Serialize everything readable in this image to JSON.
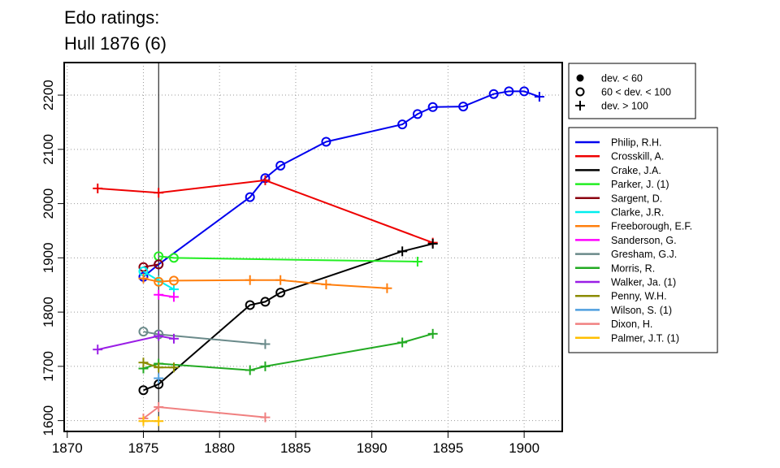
{
  "title_lines": [
    "Edo ratings:",
    "Hull 1876 (6)"
  ],
  "marker_legend": [
    {
      "symbol": "filled-circle",
      "label": "dev. < 60"
    },
    {
      "symbol": "open-circle",
      "label": "60 < dev. < 100"
    },
    {
      "symbol": "plus",
      "label": "dev. > 100"
    }
  ],
  "chart_data": {
    "type": "line",
    "title": "Edo ratings: Hull 1876 (6)",
    "xlabel": "",
    "ylabel": "",
    "xlim": [
      1869.8,
      1902.5
    ],
    "ylim": [
      1580,
      2260
    ],
    "xticks": [
      1870,
      1875,
      1880,
      1885,
      1890,
      1895,
      1900
    ],
    "yticks": [
      1600,
      1700,
      1800,
      1900,
      2000,
      2100,
      2200
    ],
    "reference_line_x": 1876,
    "grid": "dotted",
    "legend_position": "right",
    "series": [
      {
        "name": "Philip, R.H.",
        "color": "#0000ee",
        "points": [
          [
            1875,
            1865,
            "o"
          ],
          [
            1876,
            1888,
            "o"
          ],
          [
            1882,
            2012,
            "o"
          ],
          [
            1883,
            2047,
            "o"
          ],
          [
            1884,
            2070,
            "o"
          ],
          [
            1887,
            2114,
            "o"
          ],
          [
            1892,
            2146,
            "o"
          ],
          [
            1893,
            2165,
            "o"
          ],
          [
            1894,
            2178,
            "o"
          ],
          [
            1896,
            2179,
            "o"
          ],
          [
            1898,
            2202,
            "o"
          ],
          [
            1899,
            2207,
            "o"
          ],
          [
            1900,
            2207,
            "o"
          ],
          [
            1901,
            2197,
            "+"
          ]
        ]
      },
      {
        "name": "Crosskill, A.",
        "color": "#ee0000",
        "points": [
          [
            1872,
            2028,
            "+"
          ],
          [
            1876,
            2020,
            "+"
          ],
          [
            1883,
            2043,
            "+"
          ],
          [
            1894,
            1928,
            "+"
          ]
        ]
      },
      {
        "name": "Crake, J.A.",
        "color": "#000000",
        "points": [
          [
            1875,
            1656,
            "o"
          ],
          [
            1876,
            1667,
            "o"
          ],
          [
            1882,
            1813,
            "o"
          ],
          [
            1883,
            1819,
            "o"
          ],
          [
            1884,
            1836,
            "o"
          ],
          [
            1892,
            1912,
            "+"
          ],
          [
            1894,
            1926,
            "+"
          ]
        ]
      },
      {
        "name": "Parker, J. (1)",
        "color": "#22ee22",
        "points": [
          [
            1876,
            1903,
            "o"
          ],
          [
            1877,
            1900,
            "o"
          ],
          [
            1893,
            1893,
            "+"
          ]
        ]
      },
      {
        "name": "Sargent, D.",
        "color": "#8b0010",
        "points": [
          [
            1875,
            1883,
            "o"
          ],
          [
            1876,
            1888,
            "o"
          ]
        ]
      },
      {
        "name": "Clarke, J.R.",
        "color": "#00eeee",
        "points": [
          [
            1875,
            1875,
            "o"
          ],
          [
            1876,
            1858,
            "+"
          ],
          [
            1877,
            1842,
            "+"
          ]
        ]
      },
      {
        "name": "Freeborough, E.F.",
        "color": "#ff7f0e",
        "points": [
          [
            1875,
            1862,
            "+"
          ],
          [
            1876,
            1856,
            "o"
          ],
          [
            1877,
            1858,
            "o"
          ],
          [
            1882,
            1859,
            "+"
          ],
          [
            1884,
            1859,
            "+"
          ],
          [
            1887,
            1851,
            "+"
          ],
          [
            1891,
            1844,
            "+"
          ]
        ]
      },
      {
        "name": "Sanderson, G.",
        "color": "#ff00ff",
        "points": [
          [
            1876,
            1832,
            "+"
          ],
          [
            1877,
            1828,
            "+"
          ]
        ]
      },
      {
        "name": "Gresham, G.J.",
        "color": "#6a8a8a",
        "points": [
          [
            1875,
            1764,
            "o"
          ],
          [
            1876,
            1759,
            "o"
          ],
          [
            1883,
            1741,
            "+"
          ]
        ]
      },
      {
        "name": "Morris, R.",
        "color": "#22aa22",
        "points": [
          [
            1875,
            1696,
            "+"
          ],
          [
            1876,
            1705,
            "+"
          ],
          [
            1882,
            1693,
            "+"
          ],
          [
            1883,
            1700,
            "+"
          ],
          [
            1892,
            1744,
            "+"
          ],
          [
            1894,
            1760,
            "+"
          ]
        ]
      },
      {
        "name": "Walker, Ja. (1)",
        "color": "#9a1ee6",
        "points": [
          [
            1872,
            1731,
            "+"
          ],
          [
            1876,
            1756,
            "+"
          ],
          [
            1877,
            1751,
            "+"
          ]
        ]
      },
      {
        "name": "Penny, W.H.",
        "color": "#8b8b00",
        "points": [
          [
            1875,
            1707,
            "+"
          ],
          [
            1876,
            1698,
            "+"
          ],
          [
            1877,
            1698,
            "+"
          ]
        ]
      },
      {
        "name": "Wilson, S. (1)",
        "color": "#4f9fdf",
        "points": [
          [
            1876,
            1678,
            "+"
          ]
        ]
      },
      {
        "name": "Dixon, H.",
        "color": "#f08080",
        "points": [
          [
            1875,
            1604,
            "+"
          ],
          [
            1876,
            1625,
            "+"
          ],
          [
            1883,
            1606,
            "+"
          ]
        ]
      },
      {
        "name": "Palmer, J.T. (1)",
        "color": "#ffbf00",
        "points": [
          [
            1875,
            1599,
            "+"
          ],
          [
            1876,
            1599,
            "+"
          ]
        ]
      }
    ]
  }
}
